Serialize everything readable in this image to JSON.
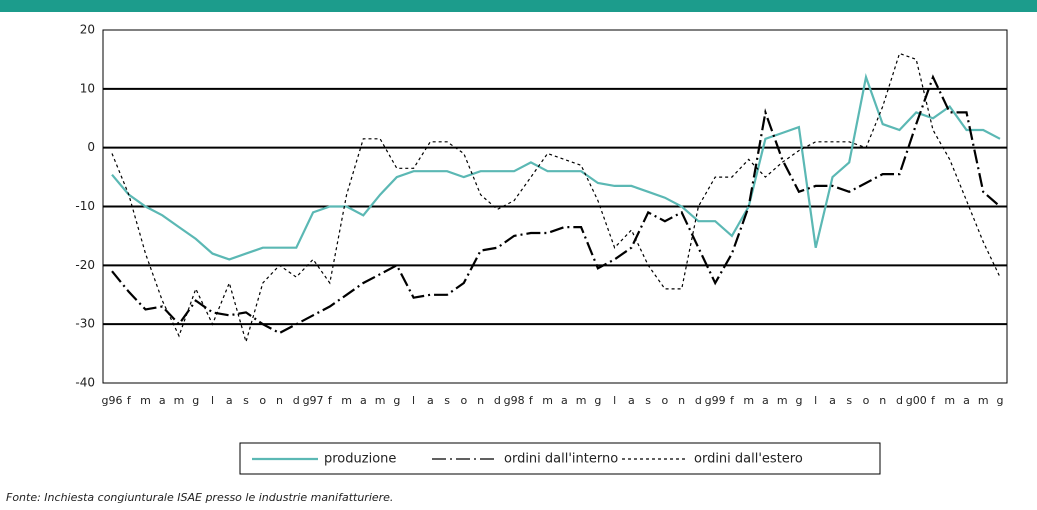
{
  "chart_data": {
    "type": "line",
    "categories": [
      "g96",
      "f",
      "m",
      "a",
      "m",
      "g",
      "l",
      "a",
      "s",
      "o",
      "n",
      "d",
      "g97",
      "f",
      "m",
      "a",
      "m",
      "g",
      "l",
      "a",
      "s",
      "o",
      "n",
      "d",
      "g98",
      "f",
      "m",
      "a",
      "m",
      "g",
      "l",
      "a",
      "s",
      "o",
      "n",
      "d",
      "g99",
      "f",
      "m",
      "a",
      "m",
      "g",
      "l",
      "a",
      "s",
      "o",
      "n",
      "d",
      "g00",
      "f",
      "m",
      "a",
      "m",
      "g"
    ],
    "series": [
      {
        "name": "produzione",
        "color": "#5bb8b4",
        "dash": "none",
        "values": [
          -4.6,
          -8,
          -10,
          -11.5,
          -13.5,
          -15.5,
          -18,
          -19,
          -18,
          -17,
          -17,
          -17,
          -11,
          -10,
          -10,
          -11.5,
          -8,
          -5,
          -4,
          -4,
          -4,
          -5,
          -4,
          -4,
          -4,
          -2.5,
          -4,
          -4,
          -4,
          -6,
          -6.5,
          -6.5,
          -7.5,
          -8.5,
          -10,
          -12.5,
          -12.5,
          -15,
          -10,
          1.5,
          2.5,
          3.5,
          -17,
          -5,
          -2.5,
          12,
          4,
          3,
          6,
          5,
          7,
          3,
          3,
          1.5
        ]
      },
      {
        "name": "ordini dall'interno",
        "color": "#000000",
        "dash": "14 4 2 4",
        "values": [
          -21,
          -24.5,
          -27.5,
          -27,
          -30,
          -26,
          -28,
          -28.5,
          -28,
          -30,
          -31.5,
          -30,
          -28.5,
          -27,
          -25,
          -23,
          -21.5,
          -20,
          -25.5,
          -25,
          -25,
          -23,
          -17.5,
          -17,
          -15,
          -14.5,
          -14.5,
          -13.5,
          -13.5,
          -20.5,
          -19,
          -17,
          -11,
          -12.5,
          -11,
          -17,
          -23,
          -18,
          -10,
          6,
          -2,
          -7.5,
          -6.5,
          -6.5,
          -7.5,
          -6,
          -4.5,
          -4.5,
          4,
          12,
          6,
          6,
          -7.5,
          -10
        ]
      },
      {
        "name": "ordini dall'estero",
        "color": "#000000",
        "dash": "3 3",
        "values": [
          -1,
          -8,
          -18,
          -26,
          -32,
          -24,
          -30,
          -23,
          -33,
          -23,
          -20,
          -22,
          -19,
          -23,
          -8,
          1.5,
          1.5,
          -3.5,
          -3.5,
          1,
          1,
          -1,
          -8,
          -10.5,
          -9,
          -5,
          -1,
          -2,
          -3,
          -9,
          -17,
          -14,
          -20,
          -24,
          -24,
          -10,
          -5,
          -5,
          -2,
          -5,
          -2.5,
          -0.5,
          1,
          1,
          1,
          0,
          7,
          16,
          15,
          3,
          -2,
          -9,
          -16,
          -22
        ]
      }
    ],
    "ylim": [
      -40,
      20
    ],
    "yticks": [
      -40,
      -30,
      -20,
      -10,
      0,
      10,
      20
    ],
    "grid": true,
    "source": "Fonte: Inchiesta congiunturale ISAE  presso le industrie manifatturiere."
  }
}
